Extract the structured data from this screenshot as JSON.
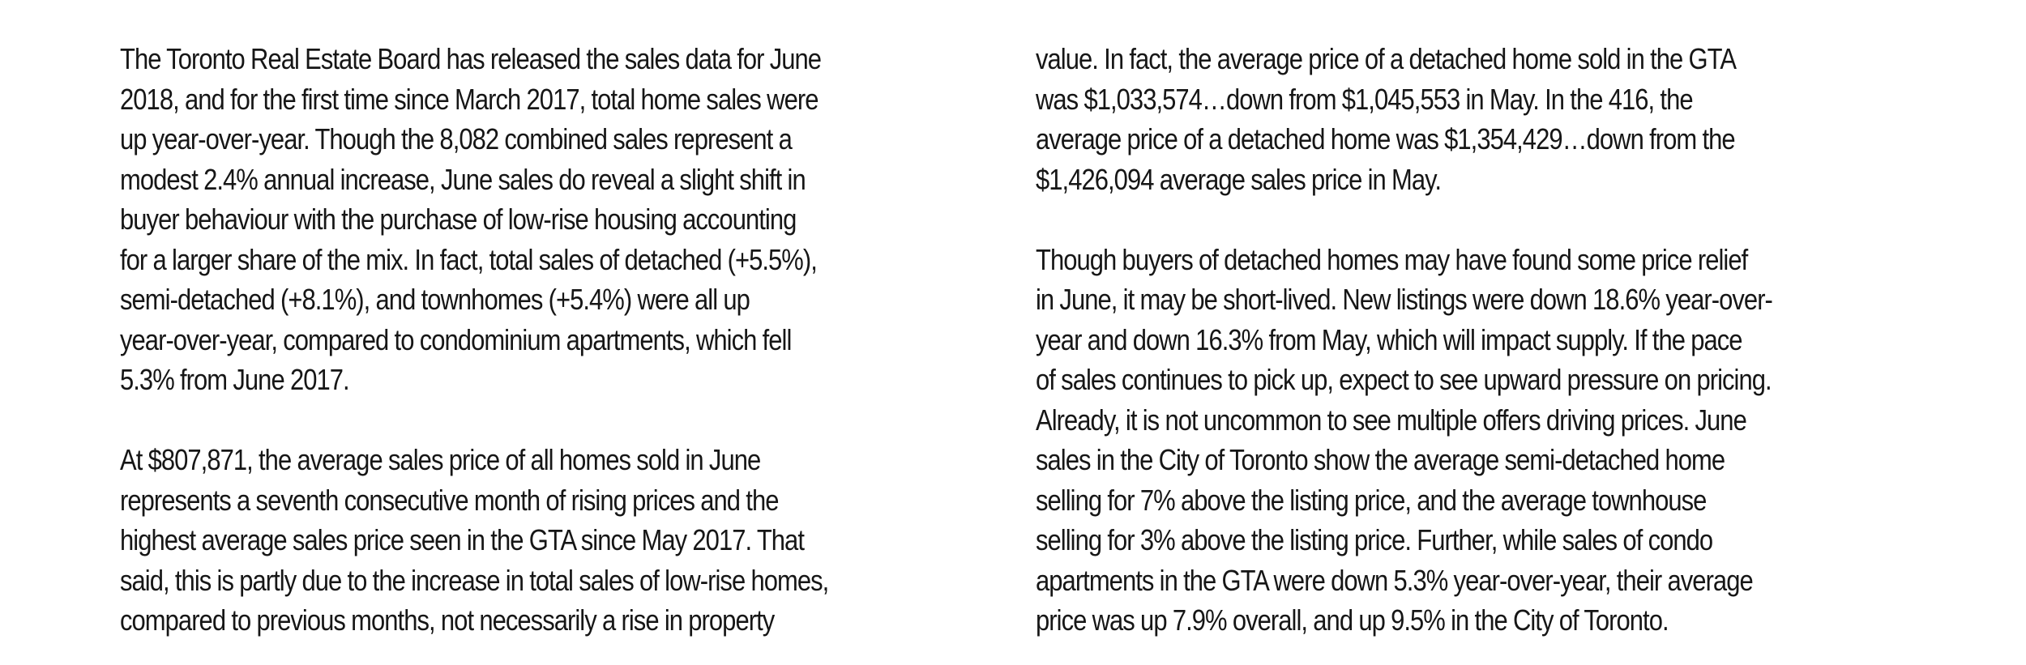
{
  "left_column": {
    "paragraph_1": {
      "lines": [
        "The Toronto Real Estate Board has released the sales data for June",
        "2018, and for the first time since March 2017, total home sales were",
        "up year-over-year. Though the 8,082 combined sales represent a",
        "modest 2.4% annual increase, June sales do reveal a slight shift in",
        "buyer behaviour with the purchase of low-rise housing accounting",
        "for a larger share of the mix. In fact, total sales of detached (+5.5%),",
        "semi-detached (+8.1%), and townhomes (+5.4%) were all up",
        "year-over-year, compared to condominium apartments, which fell",
        "5.3% from June 2017."
      ]
    },
    "paragraph_2": {
      "lines": [
        "At $807,871, the average sales price of all homes sold in June",
        "represents a seventh consecutive month of rising prices and the",
        "highest average sales price seen in the GTA since May 2017. That",
        "said, this is partly due to the increase in total sales of low-rise homes,",
        "compared to previous months, not necessarily a rise in property"
      ]
    }
  },
  "right_column": {
    "paragraph_1": {
      "lines": [
        "value. In fact, the average price of a detached home sold in the GTA",
        "was $1,033,574…down from $1,045,553 in May. In the 416, the",
        "average price of a detached home was $1,354,429…down from the",
        "$1,426,094 average sales price in May."
      ]
    },
    "paragraph_2": {
      "lines": [
        "Though buyers of detached homes may have found some price relief",
        "in June, it may be short-lived. New listings were down 18.6% year-over-",
        "year and down 16.3% from May, which will impact supply. If the pace",
        "of sales continues to pick up, expect to see upward pressure on pricing.",
        "Already, it is not uncommon to see multiple offers driving prices. June",
        "sales in the City of Toronto show the average semi-detached home",
        "selling for 7% above the listing price, and the average townhouse",
        "selling for 3% above the listing price. Further, while sales of condo",
        "apartments in the GTA were down 5.3% year-over-year, their average",
        "price was up 7.9% overall, and up 9.5% in the City of Toronto."
      ]
    }
  }
}
